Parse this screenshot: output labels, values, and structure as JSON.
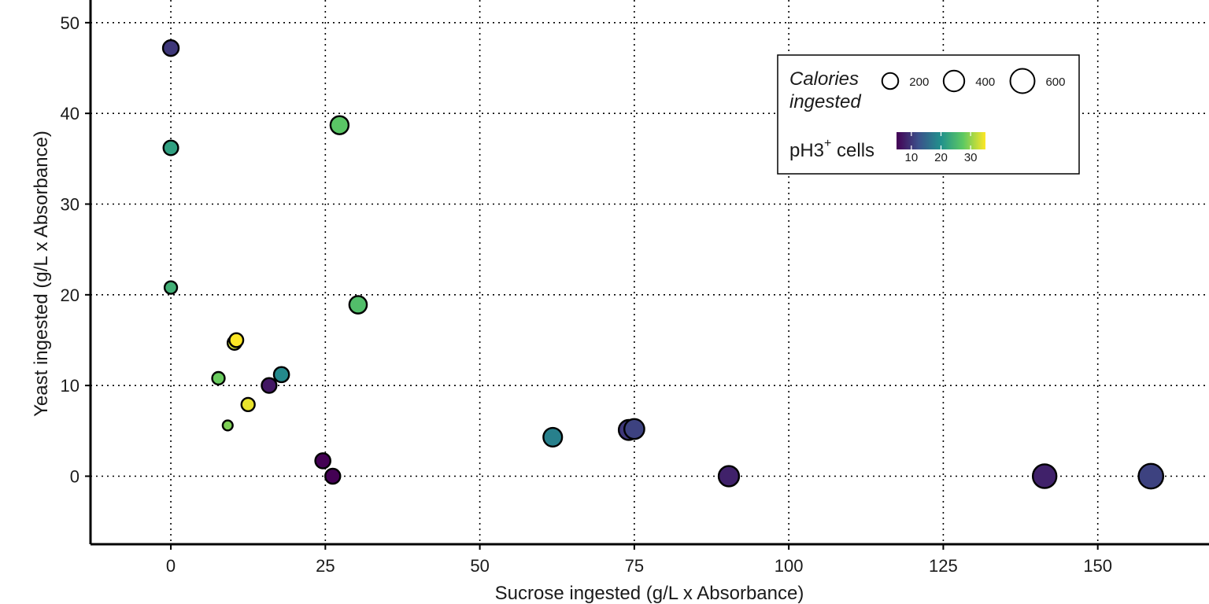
{
  "chart_data": {
    "type": "scatter",
    "title": "",
    "xlabel": "Sucrose ingested (g/L x Absorbance)",
    "ylabel": "Yeast ingested (g/L x Absorbance)",
    "xlim": [
      -13,
      168
    ],
    "ylim": [
      -7.5,
      52.5
    ],
    "xticks": [
      0,
      25,
      50,
      75,
      100,
      125,
      150
    ],
    "yticks": [
      0,
      10,
      20,
      30,
      40,
      50
    ],
    "grid": true,
    "legend": {
      "placement": "top-right",
      "size_title_line1": "Calories",
      "size_title_line2": "ingested",
      "size_values": [
        200,
        400,
        600
      ],
      "color_title_main": "pH3",
      "color_title_sup": "+",
      "color_title_rest": " cells",
      "color_ticks": [
        10,
        20,
        30
      ],
      "color_range": [
        5,
        35
      ]
    },
    "colorscale": [
      "#440154",
      "#3b528b",
      "#21918c",
      "#5ec962",
      "#fde725"
    ],
    "points": [
      {
        "x": 0,
        "y": 47.2,
        "calories": 185,
        "ph3": 10
      },
      {
        "x": 0,
        "y": 36.2,
        "calories": 150,
        "ph3": 22
      },
      {
        "x": 0,
        "y": 20.8,
        "calories": 90,
        "ph3": 24
      },
      {
        "x": 27.3,
        "y": 38.7,
        "calories": 275,
        "ph3": 27
      },
      {
        "x": 30.3,
        "y": 18.9,
        "calories": 250,
        "ph3": 26
      },
      {
        "x": 10.3,
        "y": 14.7,
        "calories": 125,
        "ph3": 33
      },
      {
        "x": 10.6,
        "y": 15.0,
        "calories": 125,
        "ph3": 35
      },
      {
        "x": 7.7,
        "y": 10.8,
        "calories": 90,
        "ph3": 28
      },
      {
        "x": 12.5,
        "y": 7.9,
        "calories": 110,
        "ph3": 34
      },
      {
        "x": 9.2,
        "y": 5.6,
        "calories": 40,
        "ph3": 29
      },
      {
        "x": 15.9,
        "y": 10.0,
        "calories": 155,
        "ph3": 7
      },
      {
        "x": 17.9,
        "y": 11.2,
        "calories": 165,
        "ph3": 19
      },
      {
        "x": 24.6,
        "y": 1.7,
        "calories": 165,
        "ph3": 5
      },
      {
        "x": 26.2,
        "y": 0.0,
        "calories": 160,
        "ph3": 5
      },
      {
        "x": 61.8,
        "y": 4.3,
        "calories": 300,
        "ph3": 18
      },
      {
        "x": 74.1,
        "y": 5.1,
        "calories": 360,
        "ph3": 10
      },
      {
        "x": 75.0,
        "y": 5.2,
        "calories": 360,
        "ph3": 11
      },
      {
        "x": 90.3,
        "y": 0.0,
        "calories": 380,
        "ph3": 8
      },
      {
        "x": 141.4,
        "y": 0.0,
        "calories": 560,
        "ph3": 8
      },
      {
        "x": 158.6,
        "y": 0.0,
        "calories": 620,
        "ph3": 11
      }
    ]
  }
}
